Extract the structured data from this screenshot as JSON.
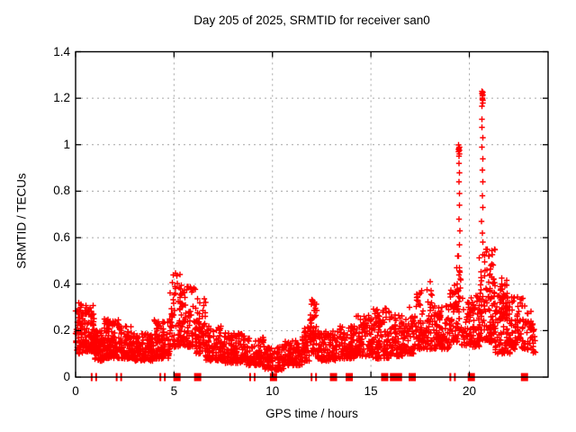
{
  "title": "Day 205 of 2025, SRMTID for receiver san0",
  "axes": {
    "xlabel": "GPS time / hours",
    "ylabel": "SRMTID / TECUs",
    "x_range": [
      0,
      24
    ],
    "y_range": [
      0,
      1.4
    ],
    "x_ticks": [
      {
        "v": 0,
        "label": "0"
      },
      {
        "v": 5,
        "label": "5"
      },
      {
        "v": 10,
        "label": "10"
      },
      {
        "v": 15,
        "label": "15"
      },
      {
        "v": 20,
        "label": "20"
      }
    ],
    "y_ticks": [
      {
        "v": 0,
        "label": "0"
      },
      {
        "v": 0.2,
        "label": "0.2"
      },
      {
        "v": 0.4,
        "label": "0.4"
      },
      {
        "v": 0.6,
        "label": "0.6"
      },
      {
        "v": 0.8,
        "label": "0.8"
      },
      {
        "v": 1,
        "label": "1"
      },
      {
        "v": 1.2,
        "label": "1.2"
      },
      {
        "v": 1.4,
        "label": "1.4"
      }
    ],
    "grid": true
  },
  "colors": {
    "marker": "#ff0000",
    "grid": "#a6a6a6",
    "border": "#000000",
    "text": "#000000",
    "background": "#ffffff"
  },
  "chart_data": {
    "type": "scatter",
    "marker": "plus",
    "series_name": "SRMTID",
    "seed": 20525,
    "bands": [
      [
        0.0,
        0.35,
        0.1,
        0.34,
        55
      ],
      [
        0.35,
        0.95,
        0.11,
        0.31,
        95
      ],
      [
        0.95,
        1.45,
        0.07,
        0.2,
        70
      ],
      [
        1.45,
        2.2,
        0.08,
        0.25,
        110
      ],
      [
        2.2,
        3.0,
        0.08,
        0.22,
        110
      ],
      [
        3.0,
        4.0,
        0.07,
        0.19,
        130
      ],
      [
        4.0,
        4.8,
        0.08,
        0.25,
        110
      ],
      [
        4.8,
        5.35,
        0.13,
        0.45,
        65
      ],
      [
        5.35,
        6.1,
        0.13,
        0.4,
        95
      ],
      [
        6.1,
        6.6,
        0.1,
        0.34,
        65
      ],
      [
        6.6,
        7.5,
        0.07,
        0.22,
        105
      ],
      [
        7.5,
        8.6,
        0.06,
        0.19,
        125
      ],
      [
        8.6,
        9.6,
        0.05,
        0.17,
        105
      ],
      [
        9.6,
        10.6,
        0.03,
        0.13,
        95
      ],
      [
        10.6,
        11.5,
        0.05,
        0.16,
        95
      ],
      [
        11.5,
        11.9,
        0.07,
        0.22,
        45
      ],
      [
        11.9,
        12.25,
        0.1,
        0.34,
        55
      ],
      [
        12.25,
        13.2,
        0.07,
        0.2,
        105
      ],
      [
        13.2,
        14.2,
        0.08,
        0.22,
        115
      ],
      [
        14.2,
        15.1,
        0.09,
        0.27,
        110
      ],
      [
        15.1,
        16.0,
        0.08,
        0.3,
        110
      ],
      [
        16.0,
        16.6,
        0.09,
        0.27,
        75
      ],
      [
        16.6,
        17.2,
        0.1,
        0.26,
        70
      ],
      [
        17.2,
        18.2,
        0.12,
        0.38,
        115
      ],
      [
        18.2,
        19.0,
        0.12,
        0.31,
        95
      ],
      [
        19.0,
        19.45,
        0.15,
        0.42,
        55
      ],
      [
        19.45,
        19.6,
        0.2,
        0.5,
        18
      ],
      [
        19.6,
        20.5,
        0.13,
        0.35,
        105
      ],
      [
        20.5,
        21.3,
        0.15,
        0.55,
        130
      ],
      [
        21.3,
        22.1,
        0.1,
        0.36,
        100
      ],
      [
        21.55,
        21.95,
        0.25,
        0.43,
        35
      ],
      [
        22.1,
        22.85,
        0.12,
        0.35,
        85
      ],
      [
        22.85,
        23.35,
        0.1,
        0.3,
        45
      ]
    ],
    "spikes": [
      {
        "x": 19.48,
        "values": [
          1.0,
          0.99,
          0.985,
          0.98,
          0.975,
          0.97,
          0.96,
          0.95,
          0.92,
          0.88,
          0.84,
          0.79,
          0.74,
          0.68,
          0.63,
          0.57,
          0.52,
          0.47,
          0.44
        ]
      },
      {
        "x": 20.66,
        "values": [
          1.23,
          1.225,
          1.22,
          1.215,
          1.21,
          1.2,
          1.195,
          1.19,
          1.18,
          1.165,
          1.11,
          1.075,
          1.03,
          0.99,
          0.94,
          0.89,
          0.84,
          0.78,
          0.73,
          0.67,
          0.62,
          0.58
        ]
      }
    ],
    "extra_points": [
      [
        12.05,
        0.33
      ],
      [
        18.0,
        0.41
      ],
      [
        19.35,
        0.47
      ],
      [
        19.4,
        0.52
      ],
      [
        16.95,
        0.3
      ]
    ],
    "axis_marker_squares_hours": [
      5.15,
      6.2,
      10.05,
      13.1,
      13.9,
      15.7,
      16.15,
      16.4,
      17.1,
      20.1,
      22.8
    ],
    "axis_marker_doublebars_hours": [
      0.93,
      2.2,
      4.42,
      8.98,
      12.1,
      19.15
    ]
  }
}
